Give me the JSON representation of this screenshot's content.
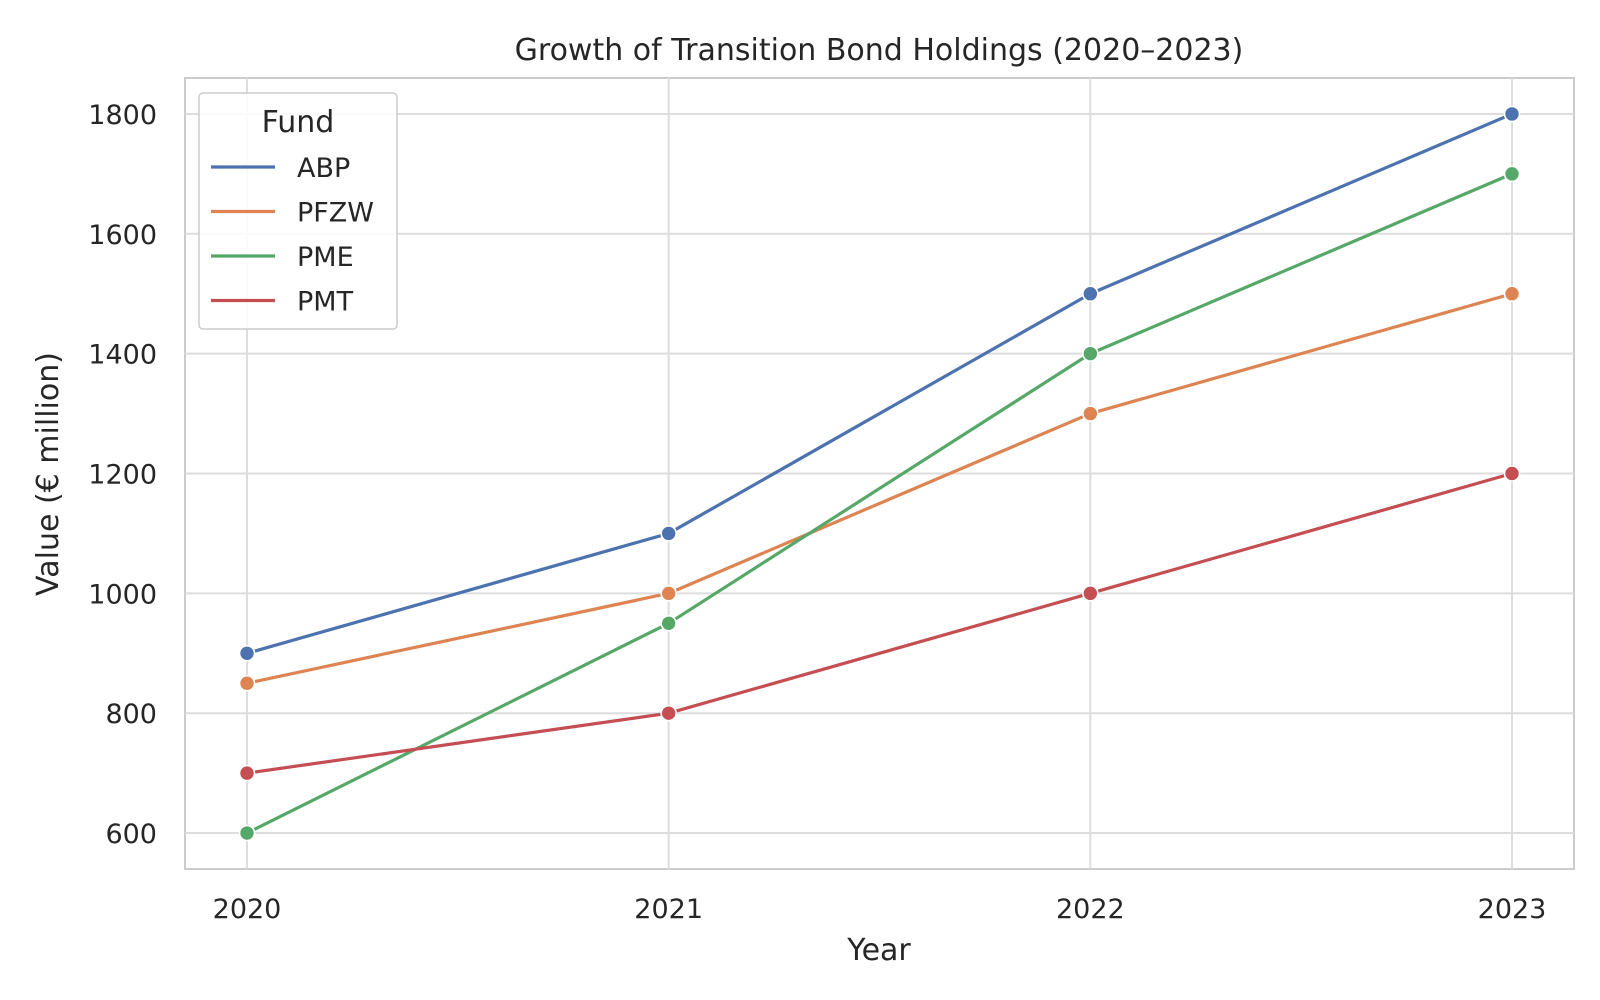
{
  "chart_data": {
    "type": "line",
    "title": "Growth of Transition Bond Holdings (2020–2023)",
    "xlabel": "Year",
    "ylabel": "Value (€ million)",
    "x": [
      "2020",
      "2021",
      "2022",
      "2023"
    ],
    "ylim": [
      540,
      1860
    ],
    "yticks": [
      "600",
      "800",
      "1000",
      "1200",
      "1400",
      "1600",
      "1800"
    ],
    "grid": true,
    "legend": {
      "title": "Fund",
      "placement": "top-left"
    },
    "series": [
      {
        "name": "ABP",
        "color": "#4c72b0",
        "values": [
          900,
          1100,
          1500,
          1800
        ]
      },
      {
        "name": "PFZW",
        "color": "#dd8452",
        "values": [
          850,
          1000,
          1300,
          1500
        ]
      },
      {
        "name": "PME",
        "color": "#55a868",
        "values": [
          600,
          950,
          1400,
          1700
        ]
      },
      {
        "name": "PMT",
        "color": "#c44e52",
        "values": [
          700,
          800,
          1000,
          1200
        ]
      }
    ]
  }
}
